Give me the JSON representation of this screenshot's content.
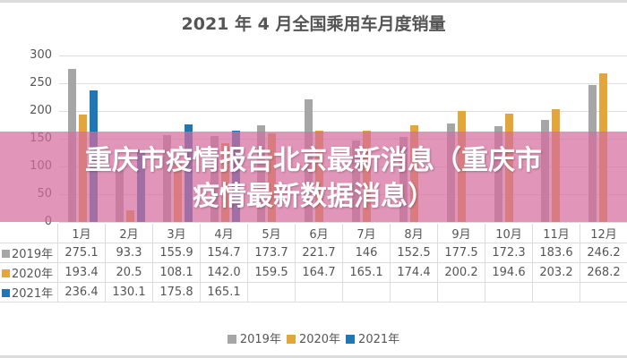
{
  "chart_data": {
    "type": "bar",
    "title": "2021 年 4 月全国乘用车月度销量",
    "xlabel": "",
    "ylabel": "",
    "ylim": [
      0,
      300
    ],
    "yticks": [
      0,
      50,
      100,
      150,
      200,
      250,
      300
    ],
    "grid": true,
    "legend_position": "bottom",
    "categories": [
      "1月",
      "2月",
      "3月",
      "4月",
      "5月",
      "6月",
      "7月",
      "8月",
      "9月",
      "10月",
      "11月",
      "12月"
    ],
    "series": [
      {
        "name": "2019年",
        "color": "#a6a6a6",
        "values": [
          275.1,
          93.3,
          155.9,
          154.7,
          173.7,
          221.7,
          146,
          152.5,
          177.5,
          172.3,
          183.6,
          246.2
        ]
      },
      {
        "name": "2020年",
        "color": "#e3a63a",
        "values": [
          193.4,
          20.5,
          108.1,
          142.0,
          159.5,
          164.7,
          165.1,
          174.4,
          200.2,
          194.6,
          203.2,
          268.2
        ]
      },
      {
        "name": "2021年",
        "color": "#1f78b4",
        "values": [
          236.4,
          130.1,
          175.8,
          165.1,
          null,
          null,
          null,
          null,
          null,
          null,
          null,
          null
        ]
      }
    ]
  },
  "table": {
    "header": [
      "1月",
      "2月",
      "3月",
      "4月",
      "5月",
      "6月",
      "7月",
      "8月",
      "9月",
      "10月",
      "11月",
      "12月"
    ],
    "rows": [
      {
        "label": "2019年",
        "values": [
          "275.1",
          "93.3",
          "155.9",
          "154.7",
          "173.7",
          "221.7",
          "146",
          "152.5",
          "177.5",
          "172.3",
          "183.6",
          "246.2"
        ]
      },
      {
        "label": "2020年",
        "values": [
          "193.4",
          "20.5",
          "108.1",
          "142.0",
          "159.5",
          "164.7",
          "165.1",
          "174.4",
          "200.2",
          "194.6",
          "203.2",
          "268.2"
        ]
      },
      {
        "label": "2021年",
        "values": [
          "236.4",
          "130.1",
          "175.8",
          "165.1",
          "",
          "",
          "",
          "",
          "",
          "",
          "",
          ""
        ]
      }
    ]
  },
  "legend": [
    "2019年",
    "2020年",
    "2021年"
  ],
  "banner": {
    "line1": "重庆市疫情报告北京最新消息（重庆市",
    "line2": "疫情最新数据消息）",
    "color": "#d46c9e"
  }
}
